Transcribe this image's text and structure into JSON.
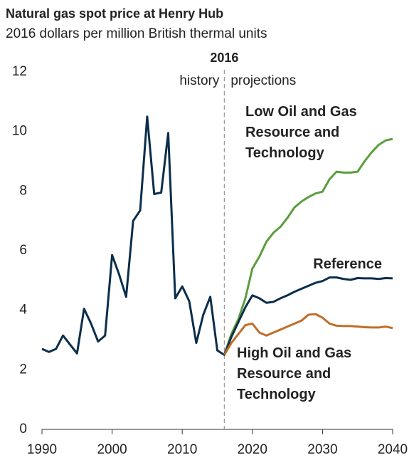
{
  "chart_data": {
    "type": "line",
    "title": "Natural gas spot price at Henry Hub",
    "subtitle": "2016 dollars per million British thermal units",
    "divider_x": 2016,
    "annotations": [
      "history",
      "projections"
    ],
    "x": [
      1990,
      1991,
      1992,
      1993,
      1994,
      1995,
      1996,
      1997,
      1998,
      1999,
      2000,
      2001,
      2002,
      2003,
      2004,
      2005,
      2006,
      2007,
      2008,
      2009,
      2010,
      2011,
      2012,
      2013,
      2014,
      2015,
      2016,
      2017,
      2018,
      2019,
      2020,
      2021,
      2022,
      2023,
      2024,
      2025,
      2026,
      2027,
      2028,
      2029,
      2030,
      2031,
      2032,
      2033,
      2034,
      2035,
      2036,
      2037,
      2038,
      2039,
      2040
    ],
    "series": [
      {
        "name": "Low Oil and Gas Resource and Technology",
        "color": "#5a9e3c",
        "values": [
          null,
          null,
          null,
          null,
          null,
          null,
          null,
          null,
          null,
          null,
          null,
          null,
          null,
          null,
          null,
          null,
          null,
          null,
          null,
          null,
          null,
          null,
          null,
          null,
          null,
          null,
          2.5,
          3.2,
          3.7,
          4.4,
          5.4,
          5.8,
          6.3,
          6.6,
          6.8,
          7.1,
          7.45,
          7.65,
          7.8,
          7.92,
          7.98,
          8.4,
          8.65,
          8.62,
          8.62,
          8.65,
          9.0,
          9.3,
          9.55,
          9.7,
          9.75
        ]
      },
      {
        "name": "Reference",
        "color": "#0b2e4a",
        "values": [
          2.7,
          2.6,
          2.7,
          3.15,
          2.85,
          2.55,
          4.05,
          3.55,
          2.95,
          3.15,
          5.85,
          5.2,
          4.45,
          7.0,
          7.35,
          10.5,
          7.9,
          7.95,
          9.95,
          4.4,
          4.8,
          4.3,
          2.9,
          3.85,
          4.45,
          2.65,
          2.5,
          3.1,
          3.6,
          4.1,
          4.5,
          4.4,
          4.25,
          4.28,
          4.4,
          4.5,
          4.62,
          4.72,
          4.82,
          4.92,
          4.98,
          5.1,
          5.1,
          5.05,
          5.02,
          5.08,
          5.07,
          5.07,
          5.05,
          5.08,
          5.07
        ]
      },
      {
        "name": "High Oil and Gas Resource and Technology",
        "color": "#c06e2a",
        "values": [
          null,
          null,
          null,
          null,
          null,
          null,
          null,
          null,
          null,
          null,
          null,
          null,
          null,
          null,
          null,
          null,
          null,
          null,
          null,
          null,
          null,
          null,
          null,
          null,
          null,
          null,
          2.5,
          2.9,
          3.2,
          3.5,
          3.55,
          3.25,
          3.15,
          3.25,
          3.35,
          3.45,
          3.55,
          3.65,
          3.85,
          3.87,
          3.75,
          3.55,
          3.48,
          3.47,
          3.47,
          3.45,
          3.43,
          3.42,
          3.42,
          3.45,
          3.4
        ]
      }
    ],
    "xlim": [
      1990,
      2040
    ],
    "xticks": [
      1990,
      2000,
      2010,
      2020,
      2030,
      2040
    ],
    "ylim": [
      0,
      12
    ],
    "yticks": [
      0,
      2,
      4,
      6,
      8,
      10,
      12
    ],
    "grid": false
  }
}
